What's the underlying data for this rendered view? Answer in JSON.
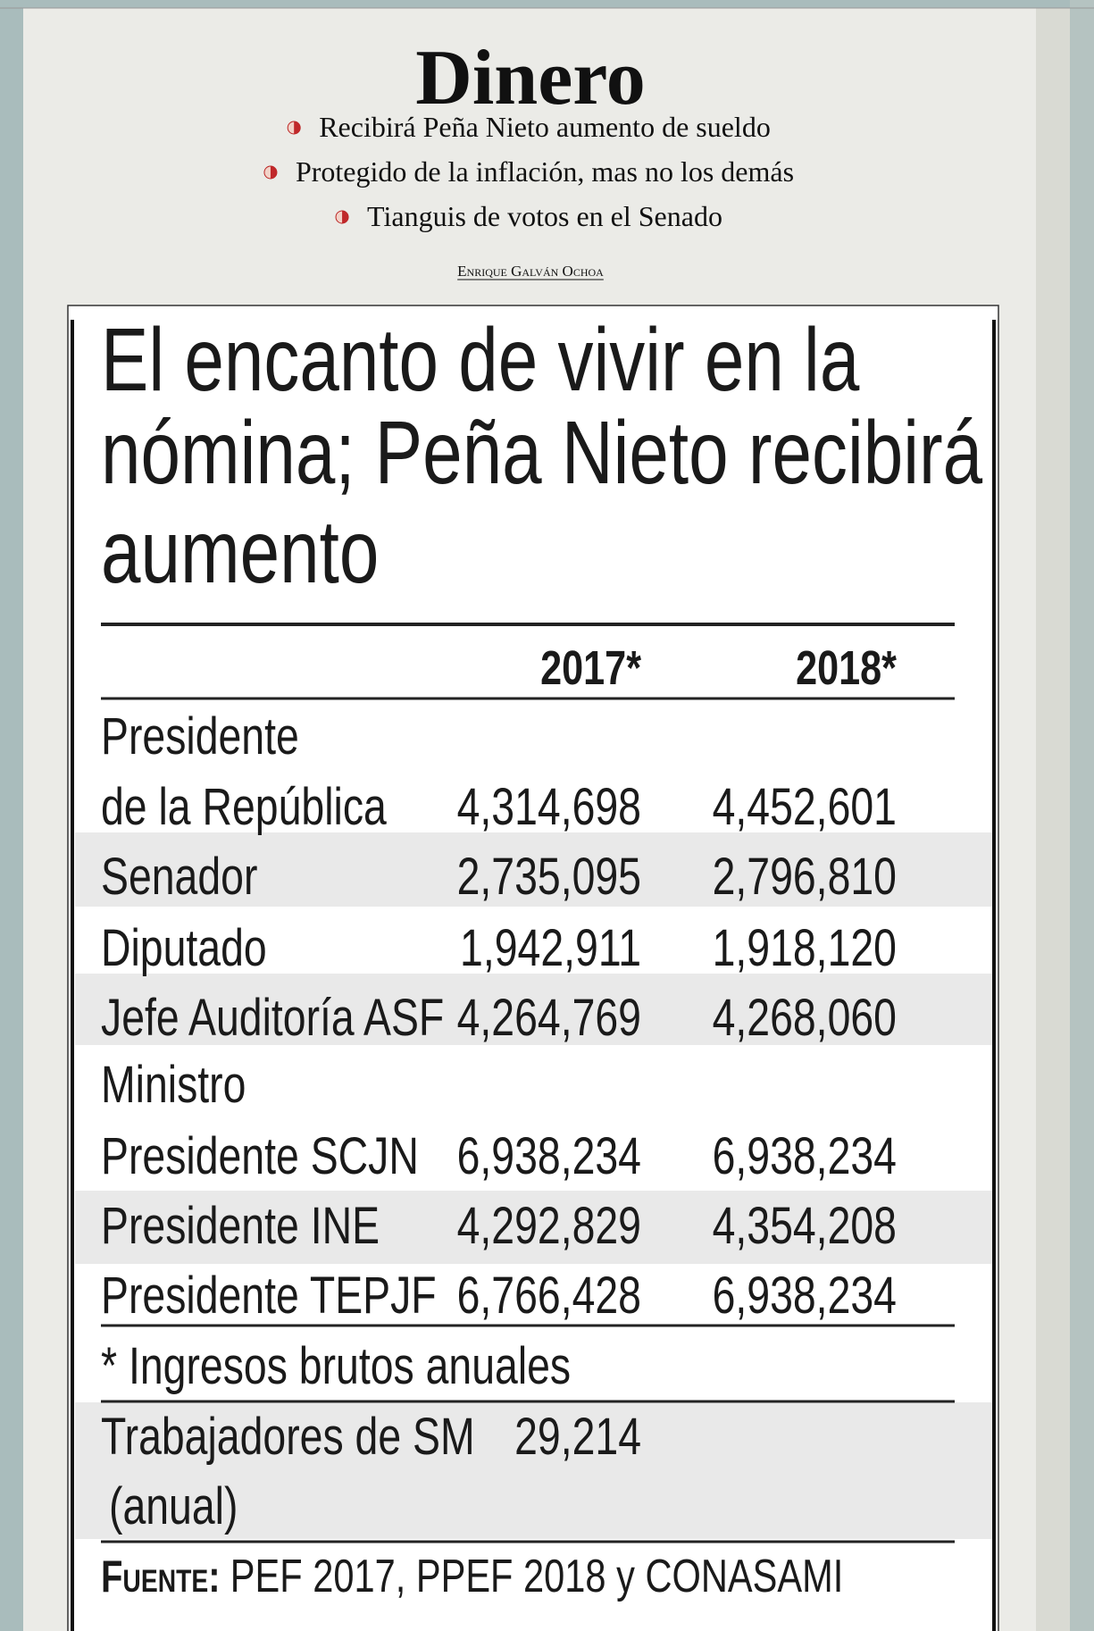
{
  "header": {
    "title": "Dinero",
    "bullets": [
      "Recibirá Peña Nieto aumento de sueldo",
      "Protegido de la inflación, mas no los demás",
      "Tianguis de votos en el Senado"
    ],
    "byline": "Enrique Galván Ochoa"
  },
  "table": {
    "title": [
      "El encanto de vivir en la",
      "nómina; Peña Nieto recibirá",
      "aumento"
    ],
    "columns": [
      "2017*",
      "2018*"
    ],
    "rows": [
      {
        "label": [
          "Presidente",
          "de la República"
        ],
        "values": [
          "4,314,698",
          "4,452,601"
        ]
      },
      {
        "label": [
          "Senador"
        ],
        "values": [
          "2,735,095",
          "2,796,810"
        ]
      },
      {
        "label": [
          "Diputado"
        ],
        "values": [
          "1,942,911",
          "1,918,120"
        ]
      },
      {
        "label": [
          "Jefe Auditoría ASF"
        ],
        "values": [
          "4,264,769",
          "4,268,060"
        ]
      },
      {
        "label": [
          "Ministro",
          "Presidente SCJN"
        ],
        "values": [
          "6,938,234",
          "6,938,234"
        ]
      },
      {
        "label": [
          "Presidente INE"
        ],
        "values": [
          "4,292,829",
          "4,354,208"
        ]
      },
      {
        "label": [
          "Presidente TEPJF"
        ],
        "values": [
          "6,766,428",
          "6,938,234"
        ]
      }
    ],
    "footnote": "* Ingresos brutos anuales",
    "wage_row": {
      "label": [
        "Trabajadores de SM",
        "(anual)"
      ],
      "value": "29,214"
    },
    "source_label": "Fuente:",
    "source": "PEF 2017, PPEF 2018 y CONASAMI"
  }
}
